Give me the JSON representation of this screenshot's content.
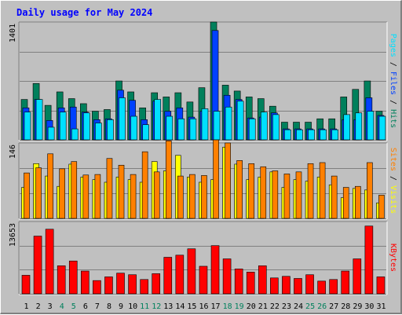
{
  "colors": {
    "hits": "#00805c",
    "files": "#0040ff",
    "pages": "#00e0ff",
    "visits": "#ffff00",
    "sites": "#ff8000",
    "kbytes": "#ff0000",
    "title": "#0000ff",
    "weekend_label": "#00805c",
    "plot_bg": "#c0c0c0"
  },
  "chart_data": {
    "type": "bar",
    "title": "Daily usage for May 2024",
    "categories": [
      "1",
      "2",
      "3",
      "4",
      "5",
      "6",
      "7",
      "8",
      "9",
      "10",
      "11",
      "12",
      "13",
      "14",
      "15",
      "16",
      "17",
      "18",
      "19",
      "20",
      "21",
      "22",
      "23",
      "24",
      "25",
      "26",
      "27",
      "28",
      "29",
      "30",
      "31"
    ],
    "weekend_days": [
      "4",
      "5",
      "11",
      "12",
      "18",
      "19",
      "25",
      "26"
    ],
    "panels": [
      {
        "id": "hits",
        "ylabel_parts": [
          "Pages",
          "Files",
          "Hits"
        ],
        "ymax_label": "1401",
        "ylim": [
          0,
          1401
        ],
        "series": [
          {
            "name": "Hits",
            "values": [
              480,
              670,
              410,
              570,
              490,
              430,
              340,
              360,
              700,
              570,
              380,
              560,
              510,
              560,
              450,
              620,
              1401,
              650,
              580,
              510,
              490,
              400,
              210,
              210,
              210,
              250,
              250,
              510,
              600,
              700,
              340
            ]
          },
          {
            "name": "Files",
            "values": [
              380,
              480,
              230,
              380,
              390,
              330,
              240,
              250,
              590,
              470,
              240,
              460,
              340,
              380,
              270,
              340,
              1300,
              530,
              480,
              260,
              270,
              320,
              130,
              130,
              130,
              130,
              130,
              240,
              240,
              500,
              290
            ]
          },
          {
            "name": "Pages",
            "values": [
              330,
              480,
              150,
              330,
              130,
              320,
              200,
              240,
              500,
              280,
              180,
              480,
              280,
              250,
              250,
              370,
              340,
              390,
              460,
              250,
              330,
              300,
              120,
              120,
              120,
              120,
              120,
              300,
              320,
              340,
              280
            ]
          }
        ]
      },
      {
        "id": "visits",
        "ylabel_parts": [
          "Sites",
          "Visits"
        ],
        "ymax_label": "146",
        "ylim": [
          0,
          146
        ],
        "series": [
          {
            "name": "Visits",
            "values": [
              60,
              106,
              82,
              62,
              105,
              80,
              75,
              70,
              80,
              75,
              70,
              110,
              92,
              122,
              80,
              70,
              75,
              138,
              105,
              75,
              80,
              90,
              60,
              75,
              72,
              80,
              65,
              40,
              58,
              55,
              30
            ]
          },
          {
            "name": "Sites",
            "values": [
              88,
              98,
              125,
              96,
              110,
              84,
              85,
              116,
              103,
              85,
              129,
              90,
              150,
              82,
              85,
              83,
              152,
              146,
              112,
              106,
              100,
              92,
              86,
              90,
              106,
              108,
              82,
              60,
              62,
              108,
              45
            ]
          }
        ]
      },
      {
        "id": "kbytes",
        "ylabel_parts": [
          "KBytes"
        ],
        "ymax_label": "13653",
        "ylim": [
          0,
          13653
        ],
        "series": [
          {
            "name": "KBytes",
            "values": [
              3500,
              10900,
              12200,
              5300,
              6200,
              4300,
              2500,
              3200,
              3900,
              3600,
              2700,
              3800,
              6900,
              7300,
              8500,
              5200,
              9100,
              6600,
              4700,
              4100,
              5300,
              3000,
              3300,
              2900,
              3600,
              2400,
              2700,
              4300,
              6600,
              12800,
              3200
            ]
          }
        ]
      }
    ]
  }
}
